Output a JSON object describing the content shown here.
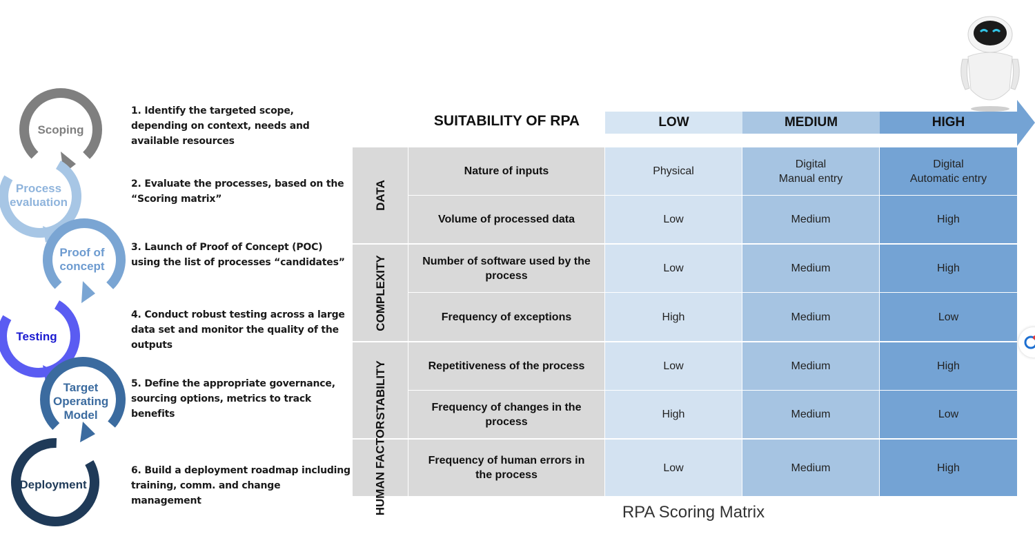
{
  "cycle": [
    {
      "label": "Scoping",
      "color": "#7f7f7f"
    },
    {
      "label": "Process evaluation",
      "color": "#a7c6e5"
    },
    {
      "label": "Proof of concept",
      "color": "#7aa5d3"
    },
    {
      "label": "Testing",
      "color": "#5a5cf2"
    },
    {
      "label": "Target Operating Model",
      "color": "#3b6b9f"
    },
    {
      "label": "Deployment",
      "color": "#1f3a58"
    }
  ],
  "steps": [
    "1. Identify the targeted scope, depending on context, needs and available resources",
    "2. Evaluate the processes, based on the “Scoring matrix”",
    "3. Launch of Proof of Concept (POC) using the list of processes “candidates”",
    "4. Conduct robust testing across a large data set and monitor the quality of the outputs",
    "5. Define the appropriate governance, sourcing options, metrics to track benefits",
    "6. Build a deployment roadmap including training, comm. and change management"
  ],
  "matrix": {
    "title": "SUITABILITY OF RPA",
    "levels": [
      "LOW",
      "MEDIUM",
      "HIGH"
    ],
    "colors": {
      "low": "#d3e2f1",
      "medium": "#a6c4e2",
      "high": "#74a3d4",
      "group": "#d9d9d9"
    },
    "groups": [
      {
        "label": "DATA"
      },
      {
        "label": "COMPLEXITY"
      },
      {
        "label": "STABILITY"
      },
      {
        "label": "HUMAN FACTOR"
      }
    ],
    "rows": [
      {
        "criterion": "Nature of inputs",
        "low": "Physical",
        "medium": "Digital\nManual entry",
        "high": "Digital\nAutomatic entry"
      },
      {
        "criterion": "Volume of processed data",
        "low": "Low",
        "medium": "Medium",
        "high": "High"
      },
      {
        "criterion": "Number of software used by the process",
        "low": "Low",
        "medium": "Medium",
        "high": "High"
      },
      {
        "criterion": "Frequency of exceptions",
        "low": "High",
        "medium": "Medium",
        "high": "Low"
      },
      {
        "criterion": "Repetitiveness of the process",
        "low": "Low",
        "medium": "Medium",
        "high": "High"
      },
      {
        "criterion": "Frequency of changes in the process",
        "low": "High",
        "medium": "Medium",
        "high": "Low"
      },
      {
        "criterion": "Frequency of human errors in the process",
        "low": "Low",
        "medium": "Medium",
        "high": "High"
      }
    ],
    "caption": "RPA Scoring Matrix"
  }
}
